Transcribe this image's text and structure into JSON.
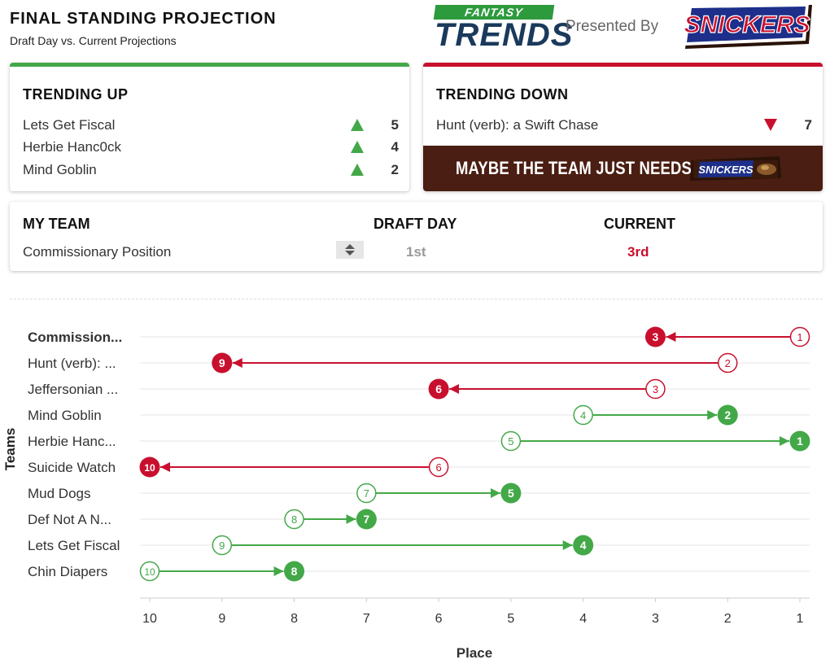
{
  "header": {
    "title": "FINAL STANDING PROJECTION",
    "subtitle": "Draft Day vs. Current Projections",
    "logo_tag": "FANTASY",
    "logo_word": "TRENDS",
    "presented_by": "Presented By",
    "sponsor": "SNICKERS"
  },
  "trending_up": {
    "title": "TRENDING UP",
    "items": [
      {
        "name": "Lets Get Fiscal",
        "value": "5"
      },
      {
        "name": "Herbie Hanc0ck",
        "value": "4"
      },
      {
        "name": "Mind Goblin",
        "value": "2"
      }
    ]
  },
  "trending_down": {
    "title": "TRENDING DOWN",
    "items": [
      {
        "name": "Hunt (verb): a Swift Chase",
        "value": "7"
      }
    ],
    "banner_text": "MAYBE THE TEAM JUST NEEDS A",
    "bar_label": "SNICKERS"
  },
  "my_team": {
    "col_team": "MY TEAM",
    "col_draft": "DRAFT DAY",
    "col_current": "CURRENT",
    "team_name": "Commissionary Position",
    "draft_day": "1st",
    "current": "3rd"
  },
  "colors": {
    "up": "#43a848",
    "down": "#c8102e",
    "grid": "#e6e6e6"
  },
  "chart_data": {
    "type": "scatter",
    "xlabel": "Place",
    "ylabel": "Teams",
    "xlim": [
      10,
      1
    ],
    "x_ticks": [
      "10",
      "9",
      "8",
      "7",
      "6",
      "5",
      "4",
      "3",
      "2",
      "1"
    ],
    "series": [
      {
        "name": "Draft Day",
        "style": "hollow"
      },
      {
        "name": "Current",
        "style": "filled"
      }
    ],
    "teams": [
      {
        "label": "Commission...",
        "bold": true,
        "draft": 1,
        "current": 3
      },
      {
        "label": "Hunt (verb): ...",
        "draft": 2,
        "current": 9
      },
      {
        "label": "Jeffersonian ...",
        "draft": 3,
        "current": 6
      },
      {
        "label": "Mind Goblin",
        "draft": 4,
        "current": 2
      },
      {
        "label": "Herbie Hanc...",
        "draft": 5,
        "current": 1
      },
      {
        "label": "Suicide Watch",
        "draft": 6,
        "current": 10
      },
      {
        "label": "Mud Dogs",
        "draft": 7,
        "current": 5
      },
      {
        "label": "Def Not A N...",
        "draft": 8,
        "current": 7
      },
      {
        "label": "Lets Get Fiscal",
        "draft": 9,
        "current": 4
      },
      {
        "label": "Chin Diapers",
        "draft": 10,
        "current": 8
      }
    ]
  }
}
